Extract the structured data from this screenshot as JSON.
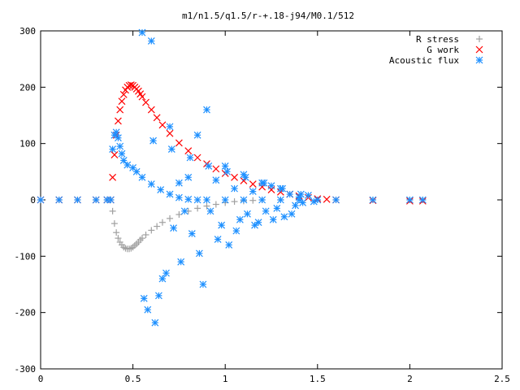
{
  "chart_data": {
    "type": "scatter",
    "title": "m1/n1.5/q1.5/r-+.18-j94/M0.1/512",
    "xlabel": "",
    "ylabel": "",
    "xlim": [
      0,
      2.5
    ],
    "ylim": [
      -300,
      300
    ],
    "x_ticks": [
      0,
      0.5,
      1,
      1.5,
      2,
      2.5
    ],
    "x_tick_labels": [
      "0",
      "0.5",
      "1",
      "1.5",
      "2",
      "2.5"
    ],
    "y_ticks": [
      -300,
      -200,
      -100,
      0,
      100,
      200,
      300
    ],
    "y_tick_labels": [
      "-300",
      "-200",
      "-100",
      "0",
      "100",
      "200",
      "300"
    ],
    "grid": false,
    "legend_position": "top-right",
    "series": [
      {
        "name": "R stress",
        "marker": "plus",
        "color": "#a0a0a0",
        "x": [
          0.0,
          0.1,
          0.2,
          0.3,
          0.36,
          0.38,
          0.39,
          0.4,
          0.41,
          0.42,
          0.43,
          0.44,
          0.45,
          0.46,
          0.47,
          0.48,
          0.49,
          0.5,
          0.51,
          0.52,
          0.53,
          0.54,
          0.55,
          0.57,
          0.6,
          0.63,
          0.66,
          0.7,
          0.75,
          0.8,
          0.85,
          0.9,
          0.95,
          1.0,
          1.05,
          1.1,
          1.15,
          1.2,
          1.3,
          1.4,
          1.5,
          1.6,
          1.8,
          2.0,
          2.07
        ],
        "y": [
          0,
          0,
          0,
          0,
          0,
          0,
          -20,
          -42,
          -58,
          -68,
          -75,
          -80,
          -84,
          -86,
          -87,
          -87,
          -86,
          -84,
          -81,
          -78,
          -75,
          -71,
          -68,
          -62,
          -54,
          -47,
          -40,
          -33,
          -26,
          -20,
          -15,
          -11,
          -8,
          -5,
          -3,
          -2,
          -1,
          0,
          0,
          0,
          0,
          0,
          0,
          0,
          0
        ]
      },
      {
        "name": "G work",
        "marker": "cross",
        "color": "#ff0000",
        "x": [
          0.0,
          0.1,
          0.2,
          0.3,
          0.36,
          0.38,
          0.39,
          0.4,
          0.41,
          0.42,
          0.43,
          0.44,
          0.45,
          0.46,
          0.47,
          0.48,
          0.49,
          0.5,
          0.51,
          0.52,
          0.53,
          0.54,
          0.55,
          0.57,
          0.6,
          0.63,
          0.66,
          0.7,
          0.75,
          0.8,
          0.85,
          0.9,
          0.95,
          1.0,
          1.05,
          1.1,
          1.15,
          1.2,
          1.25,
          1.3,
          1.35,
          1.4,
          1.45,
          1.5,
          1.55,
          1.6,
          1.8,
          2.0,
          2.07
        ],
        "y": [
          0,
          0,
          0,
          0,
          0,
          0,
          40,
          80,
          115,
          140,
          160,
          175,
          187,
          195,
          200,
          203,
          204,
          203,
          200,
          197,
          193,
          188,
          183,
          173,
          160,
          146,
          133,
          118,
          101,
          87,
          75,
          64,
          55,
          47,
          40,
          34,
          28,
          23,
          18,
          14,
          10,
          7,
          4,
          2,
          1,
          0,
          -1,
          -2,
          -2
        ]
      },
      {
        "name": "Acoustic flux",
        "marker": "star",
        "color": "#1e90ff",
        "x": [
          0.0,
          0.1,
          0.2,
          0.3,
          0.36,
          0.38,
          0.39,
          0.4,
          0.41,
          0.42,
          0.43,
          0.44,
          0.45,
          0.47,
          0.5,
          0.52,
          0.55,
          0.6,
          0.65,
          0.7,
          0.75,
          0.8,
          0.85,
          0.9,
          1.0,
          1.1,
          1.2,
          1.3,
          1.4,
          1.5,
          1.6,
          1.8,
          2.0,
          2.07,
          0.55,
          0.6,
          0.62,
          0.58,
          0.64,
          0.68,
          0.7,
          0.72,
          0.75,
          0.78,
          0.8,
          0.82,
          0.85,
          0.88,
          0.9,
          0.92,
          0.95,
          0.98,
          1.0,
          1.02,
          1.05,
          1.08,
          1.1,
          1.12,
          1.15,
          1.18,
          1.2,
          1.22,
          1.25,
          1.28,
          1.3,
          1.32,
          1.35,
          1.38,
          1.4,
          1.42,
          1.45,
          1.48,
          0.56,
          0.61,
          0.66,
          0.71,
          0.76,
          0.81,
          0.86,
          0.91,
          0.96,
          1.01,
          1.06,
          1.11,
          1.16,
          1.21,
          1.26,
          1.31,
          1.36,
          1.41
        ],
        "y": [
          0,
          0,
          0,
          0,
          0,
          0,
          90,
          115,
          120,
          110,
          95,
          82,
          70,
          62,
          57,
          50,
          40,
          28,
          18,
          10,
          4,
          1,
          0,
          0,
          0,
          0,
          0,
          0,
          0,
          0,
          0,
          0,
          0,
          0,
          297,
          282,
          -218,
          -195,
          -170,
          -130,
          130,
          -50,
          30,
          -20,
          40,
          -60,
          115,
          -150,
          160,
          -20,
          35,
          -45,
          60,
          -80,
          20,
          -35,
          45,
          -25,
          15,
          -40,
          30,
          -20,
          25,
          -15,
          20,
          -30,
          10,
          -10,
          5,
          -5,
          8,
          -3,
          -175,
          105,
          -140,
          90,
          -110,
          75,
          -95,
          60,
          -70,
          50,
          -55,
          40,
          -45,
          30,
          -35,
          20,
          -25,
          10
        ]
      }
    ]
  }
}
